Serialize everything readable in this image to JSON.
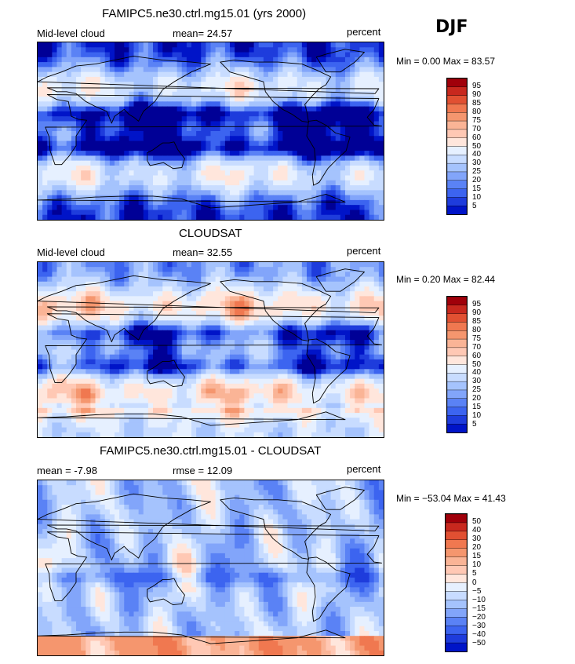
{
  "header": {
    "season": "DJF"
  },
  "palette": {
    "full": [
      "#000096",
      "#0014c8",
      "#1e3cdc",
      "#3c64f0",
      "#5a82f5",
      "#82a5fa",
      "#a5c3fd",
      "#c8dcff",
      "#e6f0ff",
      "#ffe6dc",
      "#ffc8b4",
      "#fab496",
      "#f5966e",
      "#f07850",
      "#e15032",
      "#c8281e",
      "#a0000a"
    ],
    "diff": [
      "#000096",
      "#0014c8",
      "#1e3cdc",
      "#3c64f0",
      "#5a82f5",
      "#82a5fa",
      "#a5c3fd",
      "#c8dcff",
      "#e6f0ff",
      "#ffe6dc",
      "#ffc8b4",
      "#fab496",
      "#f5966e",
      "#f07850",
      "#e15032",
      "#c8281e",
      "#a0000a"
    ]
  },
  "chart_data": [
    {
      "type": "heatmap",
      "title": "FAMIPC5.ne30.ctrl.mg15.01 (yrs 2000)",
      "left_label": "Mid-level cloud",
      "mean_text": "mean=   24.57",
      "units": "percent",
      "min_max_text": "Min =    0.00 Max =   83.57",
      "min": 0.0,
      "max": 83.57,
      "mean": 24.57,
      "colorbar_levels": [
        "95",
        "90",
        "85",
        "80",
        "75",
        "70",
        "60",
        "50",
        "40",
        "30",
        "25",
        "20",
        "15",
        "10",
        "5"
      ],
      "colorbar_kind": "full"
    },
    {
      "type": "heatmap",
      "title": "CLOUDSAT",
      "left_label": "Mid-level cloud",
      "mean_text": "mean=   32.55",
      "units": "percent",
      "min_max_text": "Min =    0.20 Max =   82.44",
      "min": 0.2,
      "max": 82.44,
      "mean": 32.55,
      "colorbar_levels": [
        "95",
        "90",
        "85",
        "80",
        "75",
        "70",
        "60",
        "50",
        "40",
        "30",
        "25",
        "20",
        "15",
        "10",
        "5"
      ],
      "colorbar_kind": "full"
    },
    {
      "type": "heatmap",
      "title": "FAMIPC5.ne30.ctrl.mg15.01 - CLOUDSAT",
      "left_label": "mean =   -7.98",
      "mean_text": "rmse =   12.09",
      "units": "percent",
      "min_max_text": "Min = −53.04 Max =   41.43",
      "min": -53.04,
      "max": 41.43,
      "mean": -7.98,
      "rmse": 12.09,
      "colorbar_levels": [
        "50",
        "40",
        "30",
        "20",
        "15",
        "10",
        "5",
        "0",
        "−5",
        "−10",
        "−15",
        "−20",
        "−30",
        "−40",
        "−50"
      ],
      "colorbar_kind": "diff"
    }
  ]
}
